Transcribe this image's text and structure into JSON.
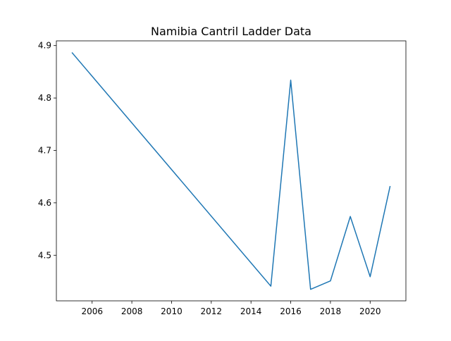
{
  "chart_data": {
    "type": "line",
    "title": "Namibia Cantril Ladder Data",
    "xlabel": "",
    "ylabel": "",
    "x": [
      2005,
      2015,
      2016,
      2017,
      2018,
      2019,
      2020,
      2021
    ],
    "series": [
      {
        "values": [
          4.886,
          4.441,
          4.834,
          4.435,
          4.451,
          4.574,
          4.459,
          4.631
        ]
      }
    ],
    "xlim": [
      2004.2,
      2021.8
    ],
    "ylim": [
      4.413,
      4.909
    ],
    "xticks": [
      2006,
      2008,
      2010,
      2012,
      2014,
      2016,
      2018,
      2020
    ],
    "yticks": [
      4.5,
      4.6,
      4.7,
      4.8,
      4.9
    ],
    "grid": false,
    "legend": "none",
    "line_color": "#1f77b4"
  }
}
